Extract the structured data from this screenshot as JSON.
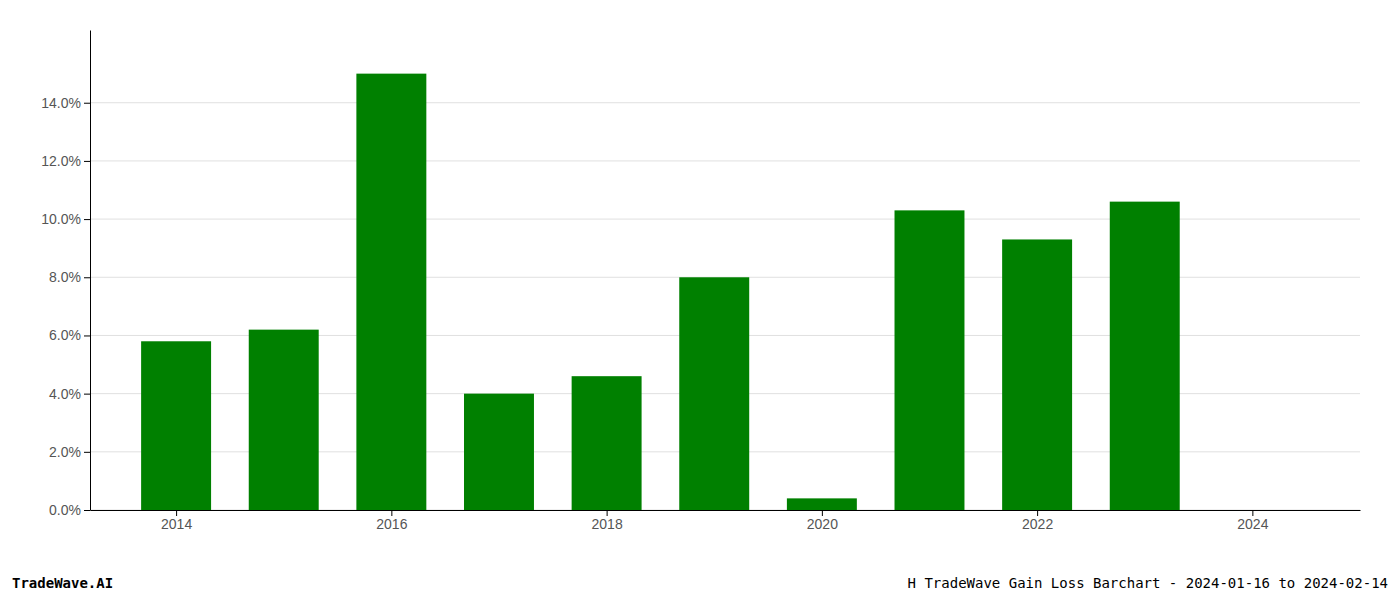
{
  "chart_data": {
    "type": "bar",
    "x": [
      2014,
      2015,
      2016,
      2017,
      2018,
      2019,
      2020,
      2021,
      2022,
      2023,
      2024
    ],
    "values": [
      0.058,
      0.062,
      0.15,
      0.04,
      0.046,
      0.08,
      0.004,
      0.103,
      0.093,
      0.106,
      null
    ],
    "color": "#008000",
    "xlim": [
      2013.2,
      2025.0
    ],
    "xticks": [
      2014,
      2016,
      2018,
      2020,
      2022,
      2024
    ],
    "ylim": [
      0,
      0.165
    ],
    "yticks": [
      {
        "value": 0.0,
        "label": "0.0%"
      },
      {
        "value": 0.02,
        "label": "2.0%"
      },
      {
        "value": 0.04,
        "label": "4.0%"
      },
      {
        "value": 0.06,
        "label": "6.0%"
      },
      {
        "value": 0.08,
        "label": "8.0%"
      },
      {
        "value": 0.1,
        "label": "10.0%"
      },
      {
        "value": 0.12,
        "label": "12.0%"
      },
      {
        "value": 0.14,
        "label": "14.0%"
      }
    ],
    "grid": true,
    "annotations": [
      "TradeWave.AI",
      "H TradeWave Gain Loss Barchart - 2024-01-16 to 2024-02-14"
    ]
  }
}
